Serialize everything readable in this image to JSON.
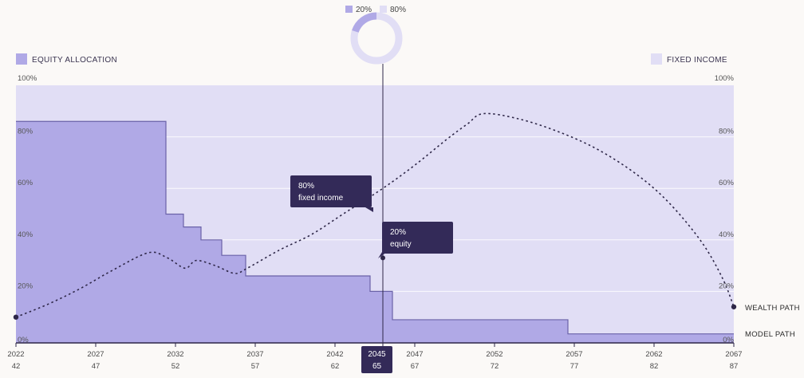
{
  "legend": {
    "equity_label": "EQUITY ALLOCATION",
    "fixed_label": "FIXED INCOME"
  },
  "donut": {
    "equity_pct_label": "20%",
    "fixed_pct_label": "80%",
    "equity_fraction": 0.2
  },
  "tooltips": {
    "fixed": {
      "value": "80%",
      "label": "fixed income"
    },
    "equity": {
      "value": "20%",
      "label": "equity"
    }
  },
  "side_labels": {
    "wealth_path": "WEALTH PATH",
    "model_path": "MODEL PATH"
  },
  "selected": {
    "year": "2045",
    "age": "65"
  },
  "colors": {
    "equity": "#b0a9e6",
    "fixed_income": "#e1def5",
    "dark": "#332a58",
    "line": "#2e2748"
  },
  "chart_data": {
    "type": "area",
    "x_range": [
      2022,
      2067
    ],
    "ylim": [
      0,
      100
    ],
    "y_ticks": [
      "0%",
      "20%",
      "40%",
      "60%",
      "80%",
      "100%"
    ],
    "x_ticks": [
      {
        "year": "2022",
        "age": "42"
      },
      {
        "year": "2027",
        "age": "47"
      },
      {
        "year": "2032",
        "age": "52"
      },
      {
        "year": "2037",
        "age": "57"
      },
      {
        "year": "2042",
        "age": "62"
      },
      {
        "year": "2045",
        "age": "65"
      },
      {
        "year": "2047",
        "age": "67"
      },
      {
        "year": "2052",
        "age": "72"
      },
      {
        "year": "2057",
        "age": "77"
      },
      {
        "year": "2062",
        "age": "82"
      },
      {
        "year": "2067",
        "age": "87"
      }
    ],
    "equity_steps": [
      {
        "from": 2022,
        "to": 2031.4,
        "value": 86
      },
      {
        "from": 2031.4,
        "to": 2032.5,
        "value": 50
      },
      {
        "from": 2032.5,
        "to": 2033.6,
        "value": 45
      },
      {
        "from": 2033.6,
        "to": 2034.9,
        "value": 40
      },
      {
        "from": 2034.9,
        "to": 2036.4,
        "value": 34
      },
      {
        "from": 2036.4,
        "to": 2044.2,
        "value": 26
      },
      {
        "from": 2044.2,
        "to": 2045.6,
        "value": 20
      },
      {
        "from": 2045.6,
        "to": 2056.6,
        "value": 9
      },
      {
        "from": 2056.6,
        "to": 2067,
        "value": 3.5
      }
    ],
    "wealth_path": [
      [
        2022,
        10
      ],
      [
        2024,
        15
      ],
      [
        2026,
        21
      ],
      [
        2028,
        28
      ],
      [
        2030.3,
        35
      ],
      [
        2031.5,
        33
      ],
      [
        2032.6,
        29
      ],
      [
        2033.3,
        32
      ],
      [
        2034.5,
        30
      ],
      [
        2035.7,
        27
      ],
      [
        2036.5,
        29
      ],
      [
        2038.5,
        36
      ],
      [
        2040.5,
        42
      ],
      [
        2042.5,
        50
      ],
      [
        2045,
        60
      ],
      [
        2047,
        69
      ],
      [
        2049,
        79
      ],
      [
        2050.3,
        85
      ],
      [
        2051.3,
        89
      ],
      [
        2053.5,
        87
      ],
      [
        2056,
        82
      ],
      [
        2058.5,
        75
      ],
      [
        2061,
        65
      ],
      [
        2063,
        54
      ],
      [
        2065,
        39
      ],
      [
        2066.3,
        25
      ],
      [
        2067,
        14
      ]
    ],
    "marker_fixed": [
      2045,
      100
    ],
    "marker_equity": [
      2045,
      33
    ]
  }
}
